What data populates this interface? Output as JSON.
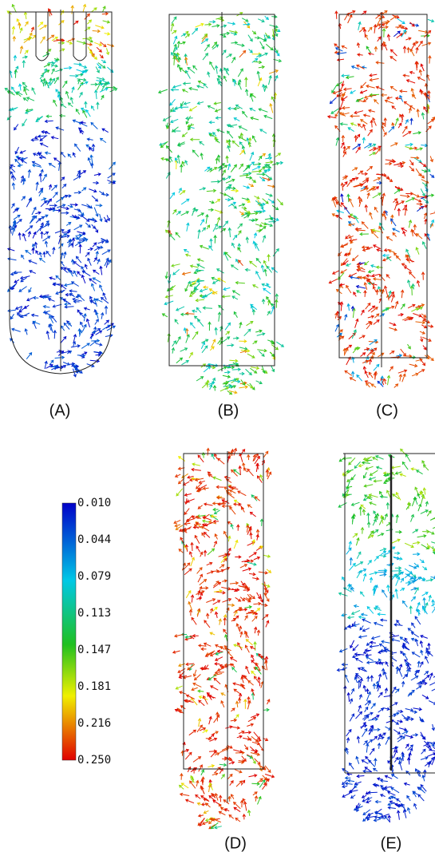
{
  "panels": [
    {
      "label": "(A)"
    },
    {
      "label": "(B)"
    },
    {
      "label": "(C)"
    },
    {
      "label": "(D)"
    },
    {
      "label": "(E)"
    }
  ],
  "colorbar": {
    "ticks": [
      "0.010",
      "0.044",
      "0.079",
      "0.113",
      "0.147",
      "0.181",
      "0.216",
      "0.250"
    ]
  }
}
